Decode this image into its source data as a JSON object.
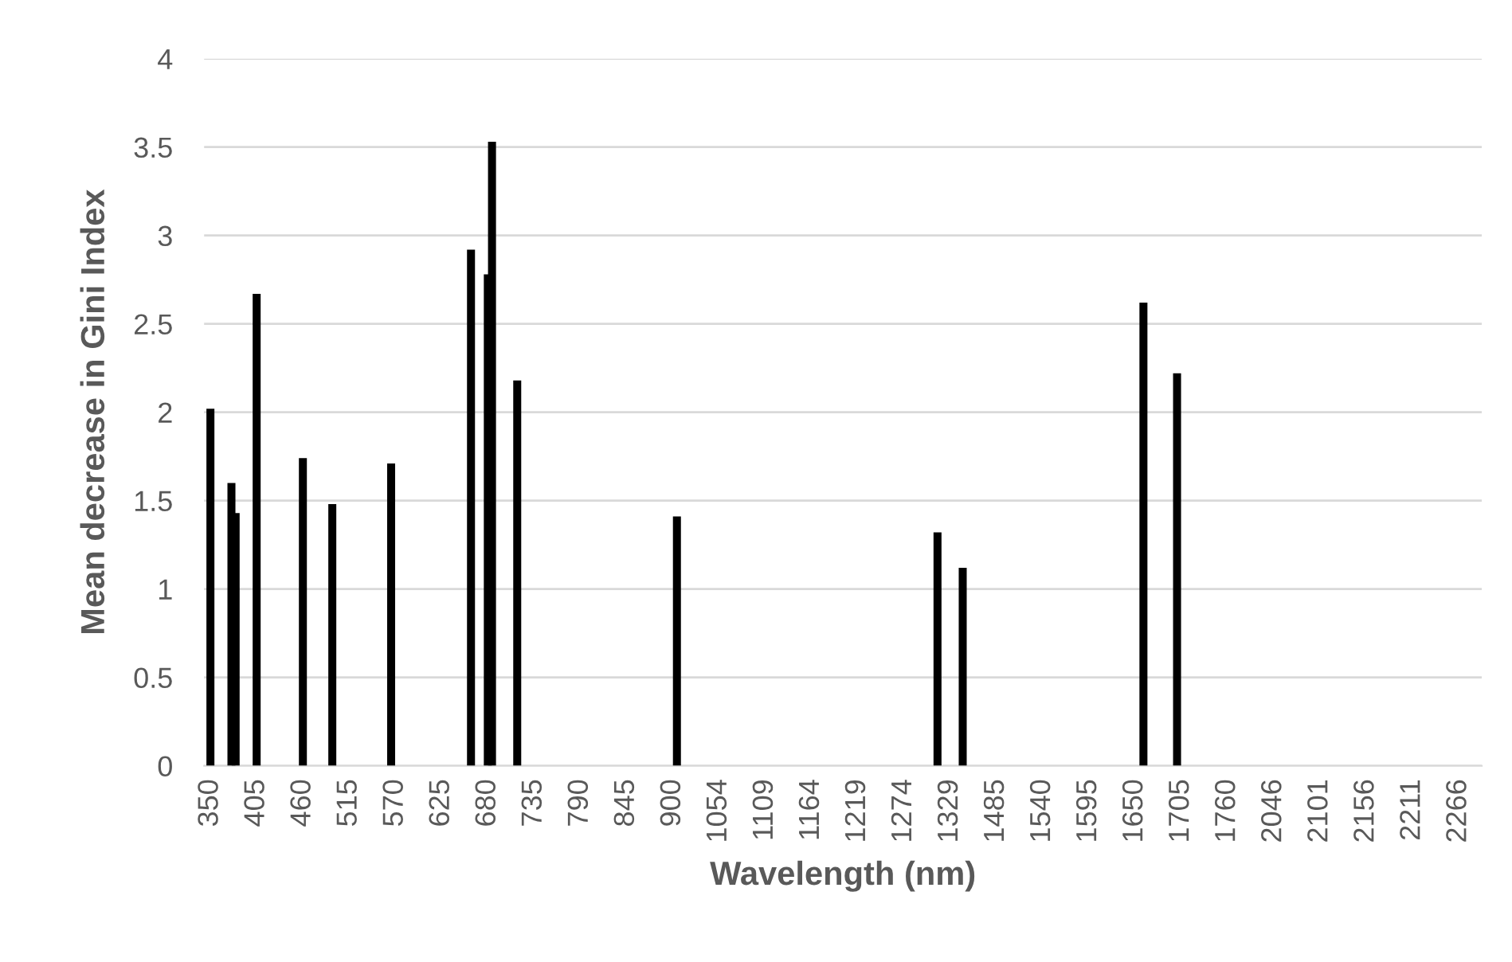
{
  "chart_data": {
    "type": "bar",
    "xlabel": "Wavelength (nm)",
    "ylabel": "Mean decrease in Gini Index",
    "categories": [
      "350",
      null,
      null,
      null,
      null,
      null,
      null,
      null,
      null,
      null,
      null,
      "405",
      null,
      null,
      null,
      null,
      null,
      null,
      null,
      null,
      null,
      null,
      "460",
      null,
      null,
      null,
      null,
      null,
      null,
      null,
      null,
      null,
      null,
      "515",
      null,
      null,
      null,
      null,
      null,
      null,
      null,
      null,
      null,
      null,
      "570",
      null,
      null,
      null,
      null,
      null,
      null,
      null,
      null,
      null,
      null,
      "625",
      null,
      null,
      null,
      null,
      null,
      null,
      null,
      null,
      null,
      null,
      "680",
      null,
      null,
      null,
      null,
      null,
      null,
      null,
      null,
      null,
      null,
      "735",
      null,
      null,
      null,
      null,
      null,
      null,
      null,
      null,
      null,
      null,
      "790",
      null,
      null,
      null,
      null,
      null,
      null,
      null,
      null,
      null,
      null,
      "845",
      null,
      null,
      null,
      null,
      null,
      null,
      null,
      null,
      null,
      null,
      "900",
      null,
      null,
      null,
      null,
      null,
      null,
      null,
      null,
      null,
      null,
      "1054",
      null,
      null,
      null,
      null,
      null,
      null,
      null,
      null,
      null,
      null,
      "1109",
      null,
      null,
      null,
      null,
      null,
      null,
      null,
      null,
      null,
      null,
      "1164",
      null,
      null,
      null,
      null,
      null,
      null,
      null,
      null,
      null,
      null,
      "1219",
      null,
      null,
      null,
      null,
      null,
      null,
      null,
      null,
      null,
      null,
      "1274",
      null,
      null,
      null,
      null,
      null,
      null,
      null,
      null,
      null,
      null,
      "1329",
      null,
      null,
      null,
      null,
      null,
      null,
      null,
      null,
      null,
      null,
      "1485",
      null,
      null,
      null,
      null,
      null,
      null,
      null,
      null,
      null,
      null,
      "1540",
      null,
      null,
      null,
      null,
      null,
      null,
      null,
      null,
      null,
      null,
      "1595",
      null,
      null,
      null,
      null,
      null,
      null,
      null,
      null,
      null,
      null,
      "1650",
      null,
      null,
      null,
      null,
      null,
      null,
      null,
      null,
      null,
      null,
      "1705",
      null,
      null,
      null,
      null,
      null,
      null,
      null,
      null,
      null,
      null,
      "1760",
      null,
      null,
      null,
      null,
      null,
      null,
      null,
      null,
      null,
      null,
      "2046",
      null,
      null,
      null,
      null,
      null,
      null,
      null,
      null,
      null,
      null,
      "2101",
      null,
      null,
      null,
      null,
      null,
      null,
      null,
      null,
      null,
      null,
      "2156",
      null,
      null,
      null,
      null,
      null,
      null,
      null,
      null,
      null,
      null,
      "2211",
      null,
      null,
      null,
      null,
      null,
      null,
      null,
      null,
      null,
      null,
      "2266",
      null,
      null,
      null,
      null,
      null
    ],
    "values": [
      2.02,
      null,
      null,
      null,
      null,
      1.6,
      1.43,
      null,
      null,
      null,
      null,
      2.67,
      null,
      null,
      null,
      null,
      null,
      null,
      null,
      null,
      null,
      null,
      1.74,
      null,
      null,
      null,
      null,
      null,
      null,
      1.48,
      null,
      null,
      null,
      null,
      null,
      null,
      null,
      null,
      null,
      null,
      null,
      null,
      null,
      1.71,
      null,
      null,
      null,
      null,
      null,
      null,
      null,
      null,
      null,
      null,
      null,
      null,
      null,
      null,
      null,
      null,
      null,
      null,
      2.92,
      null,
      null,
      null,
      2.78,
      3.53,
      null,
      null,
      null,
      null,
      null,
      2.18,
      null,
      null,
      null,
      null,
      null,
      null,
      null,
      null,
      null,
      null,
      null,
      null,
      null,
      null,
      null,
      null,
      null,
      null,
      null,
      null,
      null,
      null,
      null,
      null,
      null,
      null,
      null,
      null,
      null,
      null,
      null,
      null,
      null,
      null,
      null,
      null,
      null,
      1.41,
      null,
      null,
      null,
      null,
      null,
      null,
      null,
      null,
      null,
      null,
      null,
      null,
      null,
      null,
      null,
      null,
      null,
      null,
      null,
      null,
      null,
      null,
      null,
      null,
      null,
      null,
      null,
      null,
      null,
      null,
      null,
      null,
      null,
      null,
      null,
      null,
      null,
      null,
      null,
      null,
      null,
      null,
      null,
      null,
      null,
      null,
      null,
      null,
      null,
      null,
      null,
      null,
      null,
      null,
      null,
      null,
      null,
      null,
      null,
      null,
      null,
      1.32,
      null,
      null,
      null,
      null,
      null,
      1.12,
      null,
      null,
      null,
      null,
      null,
      null,
      null,
      null,
      null,
      null,
      null,
      null,
      null,
      null,
      null,
      null,
      null,
      null,
      null,
      null,
      null,
      null,
      null,
      null,
      null,
      null,
      null,
      null,
      null,
      null,
      null,
      null,
      null,
      null,
      null,
      null,
      null,
      null,
      null,
      null,
      null,
      null,
      2.62,
      null,
      null,
      null,
      null,
      null,
      null,
      null,
      2.22,
      null,
      null,
      null,
      null,
      null,
      null,
      null,
      null,
      null,
      null,
      null,
      null,
      null,
      null,
      null,
      null,
      null,
      null,
      null,
      null,
      null,
      null,
      null,
      null,
      null,
      null,
      null,
      null,
      null,
      null,
      null,
      null,
      null,
      null,
      null,
      null,
      null,
      null,
      null,
      null,
      null,
      null,
      null,
      null,
      null,
      null,
      null,
      null,
      null,
      null,
      null,
      null,
      null,
      null,
      null,
      null,
      null,
      null,
      null,
      null,
      null,
      null,
      null,
      null,
      null,
      null,
      null,
      null,
      null,
      null,
      null,
      null
    ],
    "color": "#000000",
    "ylim": [
      0,
      4
    ],
    "yticks": [
      0,
      0.5,
      1,
      1.5,
      2,
      2.5,
      3,
      3.5,
      4
    ],
    "grid": "y"
  }
}
